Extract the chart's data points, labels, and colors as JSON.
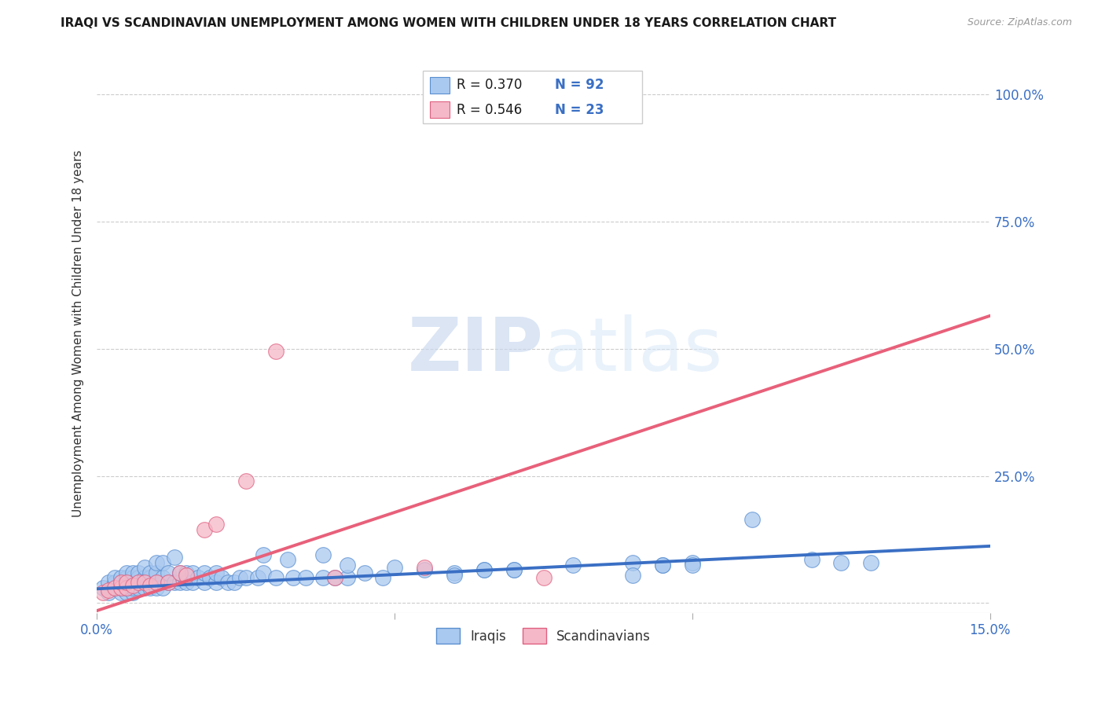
{
  "title": "IRAQI VS SCANDINAVIAN UNEMPLOYMENT AMONG WOMEN WITH CHILDREN UNDER 18 YEARS CORRELATION CHART",
  "source": "Source: ZipAtlas.com",
  "ylabel": "Unemployment Among Women with Children Under 18 years",
  "xlim": [
    0.0,
    0.15
  ],
  "ylim": [
    -0.02,
    1.08
  ],
  "xticks": [
    0.0,
    0.05,
    0.1,
    0.15
  ],
  "xticklabels": [
    "0.0%",
    "",
    "",
    "15.0%"
  ],
  "yticks": [
    0.0,
    0.25,
    0.5,
    0.75,
    1.0
  ],
  "yticklabels": [
    "",
    "25.0%",
    "50.0%",
    "75.0%",
    "100.0%"
  ],
  "iraqis_color": "#aac9f0",
  "scandinavians_color": "#f5b8c8",
  "iraqis_edge_color": "#5a8fd0",
  "scandinavians_edge_color": "#e06080",
  "iraqis_line_color": "#3a6fc4",
  "scandinavians_line_color": "#e8607a",
  "legend_R_color": "#1a1a1a",
  "legend_N_color": "#3a6fc4",
  "legend_R_iraqis": "R = 0.370",
  "legend_N_iraqis": "N = 92",
  "legend_R_scandinavians": "R = 0.546",
  "legend_N_scandinavians": "N = 23",
  "watermark_zip": "ZIP",
  "watermark_atlas": "atlas",
  "iraqis_x": [
    0.001,
    0.002,
    0.002,
    0.003,
    0.003,
    0.003,
    0.004,
    0.004,
    0.004,
    0.004,
    0.005,
    0.005,
    0.005,
    0.005,
    0.005,
    0.006,
    0.006,
    0.006,
    0.006,
    0.006,
    0.007,
    0.007,
    0.007,
    0.007,
    0.008,
    0.008,
    0.008,
    0.008,
    0.009,
    0.009,
    0.009,
    0.01,
    0.01,
    0.01,
    0.01,
    0.011,
    0.011,
    0.011,
    0.012,
    0.012,
    0.013,
    0.013,
    0.014,
    0.014,
    0.015,
    0.015,
    0.016,
    0.016,
    0.017,
    0.018,
    0.018,
    0.019,
    0.02,
    0.02,
    0.021,
    0.022,
    0.023,
    0.024,
    0.025,
    0.027,
    0.028,
    0.03,
    0.033,
    0.035,
    0.038,
    0.04,
    0.042,
    0.045,
    0.048,
    0.05,
    0.055,
    0.06,
    0.065,
    0.07,
    0.08,
    0.09,
    0.095,
    0.1,
    0.11,
    0.12,
    0.125,
    0.13,
    0.028,
    0.032,
    0.038,
    0.042,
    0.06,
    0.065,
    0.07,
    0.09,
    0.095,
    0.1
  ],
  "iraqis_y": [
    0.03,
    0.02,
    0.04,
    0.03,
    0.04,
    0.05,
    0.02,
    0.03,
    0.04,
    0.05,
    0.02,
    0.03,
    0.04,
    0.05,
    0.06,
    0.02,
    0.03,
    0.04,
    0.05,
    0.06,
    0.03,
    0.04,
    0.05,
    0.06,
    0.03,
    0.04,
    0.05,
    0.07,
    0.03,
    0.05,
    0.06,
    0.03,
    0.04,
    0.06,
    0.08,
    0.03,
    0.05,
    0.08,
    0.04,
    0.06,
    0.04,
    0.09,
    0.04,
    0.06,
    0.04,
    0.06,
    0.04,
    0.06,
    0.05,
    0.04,
    0.06,
    0.05,
    0.04,
    0.06,
    0.05,
    0.04,
    0.04,
    0.05,
    0.05,
    0.05,
    0.06,
    0.05,
    0.05,
    0.05,
    0.05,
    0.05,
    0.05,
    0.06,
    0.05,
    0.07,
    0.065,
    0.06,
    0.065,
    0.065,
    0.075,
    0.08,
    0.075,
    0.08,
    0.165,
    0.085,
    0.08,
    0.08,
    0.095,
    0.085,
    0.095,
    0.075,
    0.055,
    0.065,
    0.065,
    0.055,
    0.075,
    0.075
  ],
  "scandinavians_x": [
    0.001,
    0.002,
    0.003,
    0.004,
    0.004,
    0.005,
    0.005,
    0.006,
    0.007,
    0.008,
    0.009,
    0.01,
    0.012,
    0.014,
    0.015,
    0.018,
    0.02,
    0.025,
    0.03,
    0.04,
    0.055,
    0.075,
    0.088
  ],
  "scandinavians_y": [
    0.02,
    0.025,
    0.03,
    0.03,
    0.04,
    0.03,
    0.04,
    0.035,
    0.04,
    0.04,
    0.035,
    0.04,
    0.04,
    0.06,
    0.055,
    0.145,
    0.155,
    0.24,
    0.495,
    0.05,
    0.07,
    0.05,
    1.0
  ],
  "iraqis_trend_x": [
    0.0,
    0.15
  ],
  "iraqis_trend_y": [
    0.028,
    0.112
  ],
  "scandinavians_trend_x": [
    0.0,
    0.15
  ],
  "scandinavians_trend_y": [
    -0.015,
    0.565
  ],
  "bottom_legend_labels": [
    "Iraqis",
    "Scandinavians"
  ]
}
